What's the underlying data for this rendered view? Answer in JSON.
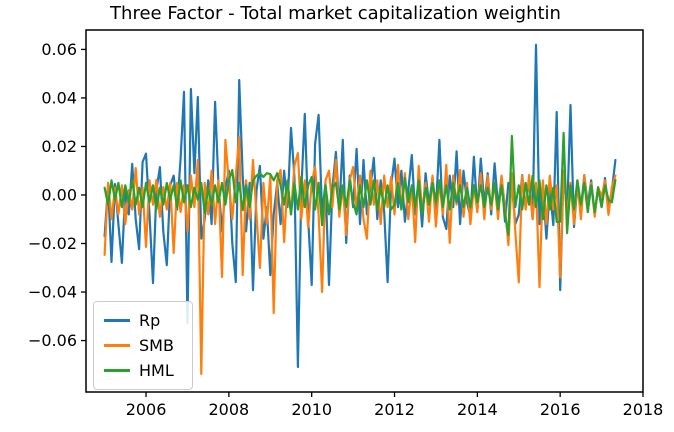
{
  "figure": {
    "title": "Three Factor - Total market capitalization weightin"
  },
  "chart_data": {
    "type": "line",
    "title": "Three Factor - Total market capitalization weightin",
    "xlabel": "",
    "ylabel": "",
    "grid": false,
    "legend_position": "lower left",
    "frequency": "monthly",
    "x_start": 2005.0,
    "x_step": 0.0833333,
    "n_points": 149,
    "x_axis": {
      "lim": [
        2004.55,
        2018.0
      ],
      "ticks": [
        {
          "value": 2006,
          "label": "2006"
        },
        {
          "value": 2008,
          "label": "2008"
        },
        {
          "value": 2010,
          "label": "2010"
        },
        {
          "value": 2012,
          "label": "2012"
        },
        {
          "value": 2014,
          "label": "2014"
        },
        {
          "value": 2016,
          "label": "2016"
        },
        {
          "value": 2018,
          "label": "2018"
        }
      ]
    },
    "y_axis": {
      "lim": [
        -0.0812,
        0.068
      ],
      "ticks": [
        {
          "value": 0.06,
          "label": "0.06"
        },
        {
          "value": 0.04,
          "label": "0.04"
        },
        {
          "value": 0.02,
          "label": "0.02"
        },
        {
          "value": 0.0,
          "label": "0.00"
        },
        {
          "value": -0.02,
          "label": "−0.02"
        },
        {
          "value": -0.04,
          "label": "−0.04"
        },
        {
          "value": -0.06,
          "label": "−0.06"
        }
      ]
    },
    "series": [
      {
        "name": "Rp",
        "color": "#1f77b4",
        "values": [
          -0.017,
          0.004,
          -0.0276,
          0.0045,
          -0.012,
          -0.028,
          0.002,
          -0.008,
          0.0128,
          -0.01,
          -0.0223,
          0.0136,
          0.017,
          -0.008,
          -0.0363,
          0.002,
          0.0115,
          -0.015,
          -0.0289,
          0.004,
          0.008,
          -0.006,
          0.015,
          0.0425,
          -0.0528,
          0.0437,
          0.009,
          0.0404,
          -0.018,
          -0.01,
          0.006,
          -0.012,
          0.0384,
          0.004,
          -0.015,
          0.003,
          0.01,
          -0.02,
          -0.0359,
          0.0474,
          0.008,
          -0.015,
          0.005,
          -0.0392,
          0.002,
          0.012,
          -0.018,
          -0.005,
          -0.033,
          -0.008,
          0.005,
          -0.012,
          0.01,
          -0.005,
          0.0276,
          0.0076,
          -0.0709,
          0.002,
          0.0334,
          -0.01,
          -0.0371,
          0.021,
          0.033,
          -0.008,
          0.005,
          -0.0371,
          0.003,
          0.0177,
          -0.006,
          0.0227,
          -0.0198,
          0.008,
          -0.005,
          0.019,
          -0.012,
          0.0144,
          -0.008,
          0.003,
          0.0153,
          -0.01,
          0.006,
          -0.007,
          -0.0359,
          0.004,
          0.015,
          -0.005,
          0.01,
          -0.011,
          0.002,
          0.0165,
          -0.008,
          0.005,
          -0.013,
          0.009,
          -0.004,
          0.007,
          -0.006,
          0.0227,
          -0.009,
          -0.014,
          0.008,
          -0.005,
          0.018,
          -0.012,
          0.01,
          -0.003,
          -0.009,
          0.0158,
          -0.007,
          0.015,
          -0.004,
          0.009,
          -0.008,
          0.013,
          -0.005,
          0.007,
          -0.011,
          0.005,
          0.004,
          -0.012,
          -0.008,
          0.0082,
          -0.005,
          0.006,
          -0.01,
          0.0619,
          -0.012,
          0.005,
          -0.018,
          0.003,
          -0.0124,
          0.0342,
          -0.0392,
          0.01,
          -0.008,
          0.0371,
          -0.0132,
          0.004,
          -0.006,
          0.0082,
          -0.004,
          0.006,
          -0.008,
          0.003,
          -0.005,
          0.007,
          -0.006,
          0.002,
          0.0144
        ]
      },
      {
        "name": "SMB",
        "color": "#ff7f0e",
        "values": [
          -0.0247,
          0.005,
          -0.01,
          0.003,
          -0.008,
          0.004,
          -0.012,
          0.002,
          -0.006,
          0.0111,
          -0.008,
          0.003,
          -0.0214,
          0.006,
          -0.004,
          0.0062,
          -0.009,
          0.0033,
          -0.006,
          0.005,
          -0.0239,
          0.005,
          -0.007,
          0.004,
          -0.015,
          0.008,
          -0.005,
          0.0144,
          -0.0738,
          0.005,
          -0.008,
          0.01,
          -0.012,
          0.006,
          -0.0338,
          0.0227,
          0.005,
          -0.01,
          0.008,
          0.0239,
          -0.033,
          0.006,
          -0.01,
          0.0144,
          -0.008,
          -0.0301,
          0.005,
          -0.012,
          0.008,
          -0.0487,
          0.006,
          0.0103,
          -0.0194,
          0.005,
          -0.008,
          0.012,
          0.0173,
          -0.01,
          0.006,
          -0.0132,
          0.005,
          0.0115,
          -0.008,
          -0.04,
          0.006,
          0.01,
          -0.005,
          0.0144,
          -0.009,
          0.004,
          -0.0165,
          0.006,
          0.0115,
          -0.006,
          0.008,
          -0.01,
          -0.018,
          0.01,
          -0.004,
          0.006,
          -0.012,
          0.008,
          -0.005,
          0.0074,
          -0.008,
          0.0124,
          -0.006,
          0.009,
          -0.01,
          0.004,
          -0.0194,
          0.012,
          -0.007,
          0.005,
          -0.011,
          0.008,
          -0.013,
          0.006,
          -0.008,
          0.0124,
          -0.0198,
          0.008,
          -0.004,
          0.0103,
          -0.009,
          0.005,
          -0.012,
          0.004,
          -0.007,
          0.009,
          -0.01,
          0.008,
          -0.006,
          0.005,
          -0.01,
          0.008,
          -0.005,
          -0.0206,
          0.009,
          -0.015,
          -0.036,
          0.008,
          -0.006,
          0.0082,
          -0.01,
          0.005,
          -0.038,
          0.006,
          -0.012,
          0.008,
          -0.006,
          0.004,
          -0.034,
          0.01,
          -0.008,
          0.005,
          -0.012,
          0.006,
          -0.01,
          0.0082,
          -0.007,
          0.005,
          -0.009,
          0.0033,
          -0.0008,
          0.006,
          -0.0082,
          0.0033,
          0.008
        ]
      },
      {
        "name": "HML",
        "color": "#2ca02c",
        "values": [
          0.003,
          -0.004,
          0.006,
          -0.002,
          0.005,
          -0.005,
          0.004,
          -0.003,
          0.006,
          -0.004,
          0.003,
          -0.005,
          0.005,
          -0.003,
          0.004,
          -0.006,
          0.003,
          -0.004,
          0.005,
          -0.002,
          0.004,
          -0.005,
          0.006,
          -0.003,
          0.004,
          -0.005,
          0.003,
          -0.002,
          0.005,
          -0.0074,
          0.003,
          -0.004,
          0.004,
          -0.003,
          0.005,
          -0.004,
          0.006,
          0.0103,
          -0.003,
          0.005,
          -0.0062,
          0.004,
          -0.005,
          0.006,
          0.008,
          0.009,
          0.0074,
          0.009,
          0.0086,
          0.006,
          0.009,
          0.004,
          -0.004,
          0.006,
          -0.008,
          0.005,
          -0.006,
          0.0074,
          -0.005,
          0.004,
          0.0074,
          -0.006,
          0.005,
          -0.0124,
          0.004,
          -0.008,
          0.003,
          0.005,
          -0.006,
          0.004,
          -0.005,
          0.006,
          -0.003,
          -0.008,
          0.004,
          -0.005,
          0.006,
          -0.004,
          0.006,
          -0.006,
          0.003,
          -0.005,
          0.004,
          -0.006,
          -0.004,
          0.005,
          -0.006,
          0.007,
          -0.003,
          0.004,
          -0.005,
          0.006,
          -0.008,
          0.003,
          -0.004,
          0.005,
          -0.003,
          0.006,
          -0.005,
          0.004,
          -0.006,
          0.005,
          -0.003,
          0.004,
          -0.005,
          0.003,
          -0.005,
          0.004,
          -0.003,
          0.004,
          -0.005,
          0.003,
          -0.004,
          0.005,
          -0.006,
          0.004,
          -0.008,
          -0.0165,
          0.0243,
          -0.005,
          0.004,
          -0.006,
          0.005,
          -0.004,
          0.008,
          -0.005,
          0.006,
          -0.01,
          0.004,
          -0.006,
          0.003,
          -0.0111,
          -0.011,
          0.0256,
          -0.0157,
          0.004,
          -0.006,
          0.006,
          -0.004,
          0.005,
          -0.007,
          0.004,
          -0.007,
          0.003,
          -0.005,
          0.004,
          -0.002,
          -0.003,
          0.0062
        ]
      }
    ]
  }
}
